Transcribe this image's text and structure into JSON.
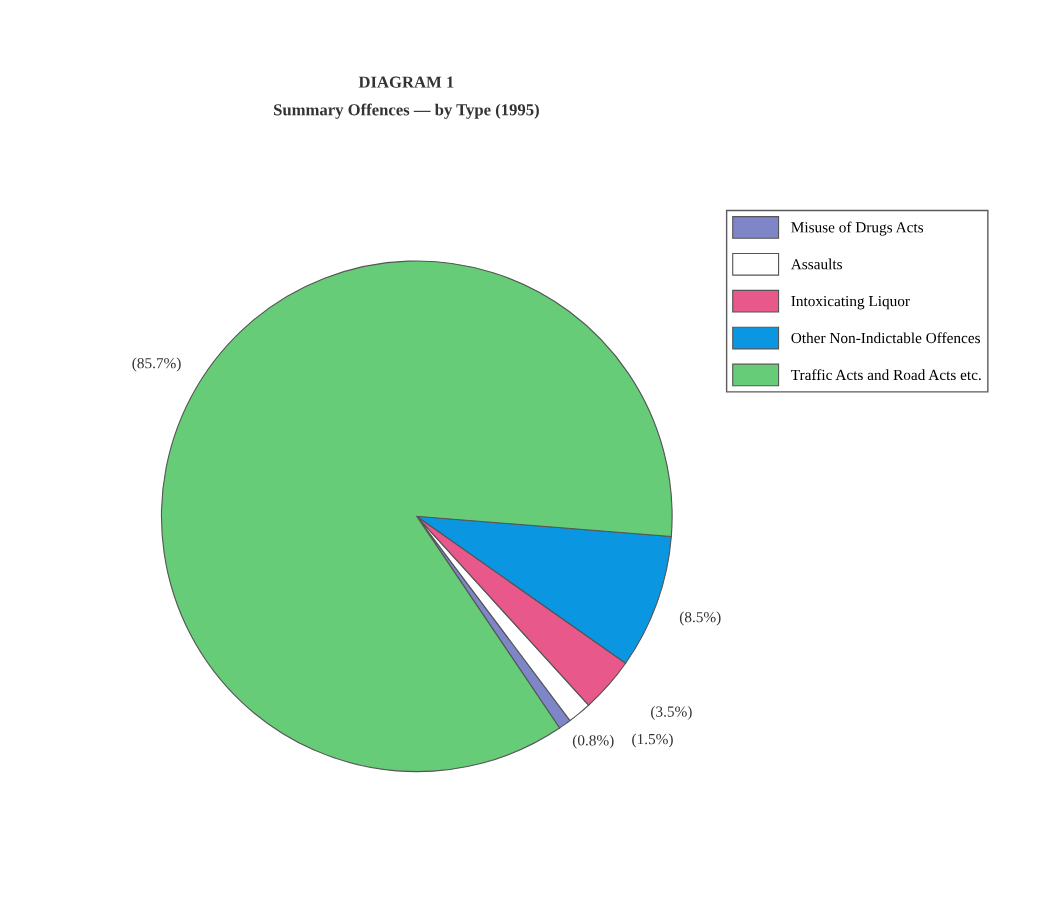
{
  "chart_data": {
    "type": "pie",
    "title": "DIAGRAM 1",
    "subtitle": "Summary Offences — by Type (1995)",
    "categories": [
      "Misuse of Drugs Acts",
      "Assaults",
      "Intoxicating Liquor",
      "Other Non-Indictable Offences",
      "Traffic Acts and Road Acts etc."
    ],
    "values": [
      0.8,
      1.5,
      3.5,
      8.5,
      85.7
    ],
    "colors": [
      "#7f86c8",
      "#ffffff",
      "#e8588a",
      "#0a96e0",
      "#66cc77"
    ],
    "value_labels": [
      "(0.8%)",
      "(1.5%)",
      "(3.5%)",
      "(8.5%)",
      "(85.7%)"
    ],
    "legend": "right"
  }
}
